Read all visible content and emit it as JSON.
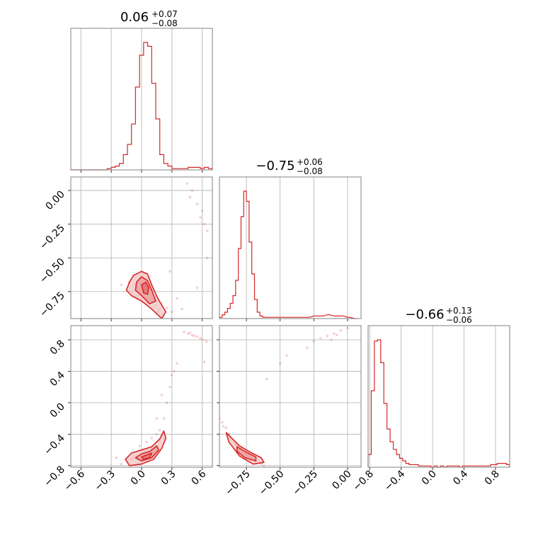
{
  "chart_data": {
    "type": "corner",
    "color": "#d62728",
    "parameters": [
      {
        "median": "0.06",
        "plus": "+0.07",
        "minus": "−0.08",
        "range": [
          -0.7,
          0.7
        ]
      },
      {
        "median": "−0.75",
        "plus": "+0.06",
        "minus": "−0.08",
        "range": [
          -0.95,
          0.1
        ]
      },
      {
        "median": "−0.66",
        "plus": "+0.13",
        "minus": "−0.06",
        "range": [
          -0.82,
          0.98
        ]
      }
    ],
    "ticks": {
      "p0": [
        {
          "v": -0.6,
          "label": "−0.6"
        },
        {
          "v": -0.3,
          "label": "−0.3"
        },
        {
          "v": 0.0,
          "label": "0.0"
        },
        {
          "v": 0.3,
          "label": "0.3"
        },
        {
          "v": 0.6,
          "label": "0.6"
        }
      ],
      "p1": [
        {
          "v": -0.75,
          "label": "−0.75"
        },
        {
          "v": -0.5,
          "label": "−0.50"
        },
        {
          "v": -0.25,
          "label": "−0.25"
        },
        {
          "v": 0.0,
          "label": "0.00"
        }
      ],
      "p2": [
        {
          "v": -0.8,
          "label": "−0.8"
        },
        {
          "v": -0.4,
          "label": "−0.4"
        },
        {
          "v": 0.0,
          "label": "0.0"
        },
        {
          "v": 0.4,
          "label": "0.4"
        },
        {
          "v": 0.8,
          "label": "0.8"
        }
      ]
    },
    "histograms": [
      {
        "x": [
          -0.7,
          -0.66,
          -0.62,
          -0.58,
          -0.54,
          -0.5,
          -0.46,
          -0.42,
          -0.38,
          -0.34,
          -0.3,
          -0.26,
          -0.22,
          -0.18,
          -0.14,
          -0.1,
          -0.06,
          -0.02,
          0.02,
          0.06,
          0.1,
          0.14,
          0.18,
          0.22,
          0.26,
          0.3,
          0.34,
          0.38,
          0.42,
          0.46,
          0.5,
          0.54,
          0.58,
          0.62,
          0.66
        ],
        "counts": [
          0,
          0,
          0,
          0,
          0,
          0,
          0,
          0,
          0,
          0.01,
          0.02,
          0.03,
          0.05,
          0.12,
          0.2,
          0.36,
          0.65,
          0.9,
          1.0,
          0.97,
          0.68,
          0.4,
          0.12,
          0.05,
          0.03,
          0.01,
          0.01,
          0.01,
          0.01,
          0.02,
          0.02,
          0.02,
          0.01,
          0.02,
          0.01
        ]
      },
      {
        "x": [
          -0.95,
          -0.93,
          -0.91,
          -0.89,
          -0.87,
          -0.85,
          -0.83,
          -0.81,
          -0.79,
          -0.77,
          -0.75,
          -0.73,
          -0.71,
          -0.69,
          -0.67,
          -0.65,
          -0.63,
          -0.61,
          -0.59,
          -0.55,
          -0.5,
          -0.45,
          -0.4,
          -0.35,
          -0.3,
          -0.25,
          -0.2,
          -0.15,
          -0.1,
          -0.05,
          0.0,
          0.05
        ],
        "counts": [
          0.01,
          0.03,
          0.05,
          0.08,
          0.12,
          0.18,
          0.3,
          0.55,
          0.8,
          1.0,
          0.92,
          0.6,
          0.35,
          0.15,
          0.05,
          0.02,
          0.01,
          0.01,
          0.01,
          0.01,
          0.01,
          0.01,
          0.01,
          0.01,
          0.01,
          0.02,
          0.02,
          0.03,
          0.02,
          0.02,
          0.01,
          0.0
        ]
      },
      {
        "x": [
          -0.82,
          -0.78,
          -0.74,
          -0.7,
          -0.66,
          -0.62,
          -0.58,
          -0.54,
          -0.5,
          -0.46,
          -0.42,
          -0.38,
          -0.34,
          -0.3,
          -0.26,
          -0.22,
          -0.18,
          -0.14,
          -0.1,
          -0.06,
          -0.02,
          0.02,
          0.06,
          0.1,
          0.14,
          0.18,
          0.22,
          0.26,
          0.3,
          0.34,
          0.38,
          0.42,
          0.46,
          0.5,
          0.54,
          0.58,
          0.62,
          0.66,
          0.7,
          0.74,
          0.78,
          0.82,
          0.86,
          0.9,
          0.94
        ],
        "counts": [
          0.1,
          0.6,
          0.99,
          1.0,
          0.82,
          0.5,
          0.3,
          0.2,
          0.14,
          0.1,
          0.07,
          0.05,
          0.03,
          0.02,
          0.02,
          0.02,
          0.01,
          0.01,
          0.01,
          0.01,
          0.0,
          0.01,
          0.0,
          0.01,
          0.0,
          0.01,
          0.01,
          0.01,
          0.01,
          0.0,
          0.01,
          0.01,
          0.01,
          0.01,
          0.01,
          0.01,
          0.01,
          0.01,
          0.01,
          0.02,
          0.02,
          0.03,
          0.03,
          0.03,
          0.02
        ]
      }
    ],
    "samples": {
      "p0p1_core": [
        [
          -0.08,
          -0.7
        ],
        [
          -0.05,
          -0.72
        ],
        [
          0.0,
          -0.68
        ],
        [
          0.03,
          -0.75
        ],
        [
          0.06,
          -0.73
        ],
        [
          0.08,
          -0.78
        ],
        [
          0.1,
          -0.8
        ],
        [
          0.12,
          -0.82
        ],
        [
          -0.02,
          -0.66
        ],
        [
          0.04,
          -0.7
        ],
        [
          0.14,
          -0.85
        ],
        [
          0.18,
          -0.88
        ],
        [
          -0.1,
          -0.75
        ],
        [
          0.02,
          -0.62
        ],
        [
          0.06,
          -0.65
        ],
        [
          0.09,
          -0.7
        ],
        [
          -0.04,
          -0.78
        ],
        [
          0.16,
          -0.9
        ],
        [
          0.2,
          -0.92
        ],
        [
          0.0,
          -0.8
        ],
        [
          -0.06,
          -0.64
        ],
        [
          0.11,
          -0.74
        ],
        [
          0.05,
          -0.84
        ],
        [
          -0.12,
          -0.68
        ]
      ],
      "p0p1_tail": [
        [
          0.25,
          -0.87
        ],
        [
          0.3,
          -0.9
        ],
        [
          0.35,
          -0.8
        ],
        [
          0.45,
          0.05
        ],
        [
          0.5,
          0.0
        ],
        [
          0.55,
          -0.1
        ],
        [
          0.58,
          -0.2
        ],
        [
          0.6,
          -0.15
        ],
        [
          0.62,
          -0.25
        ],
        [
          0.65,
          -0.3
        ],
        [
          0.48,
          -0.05
        ],
        [
          0.4,
          -0.88
        ],
        [
          0.55,
          -0.72
        ],
        [
          0.65,
          -0.5
        ],
        [
          -0.2,
          -0.7
        ],
        [
          0.28,
          -0.6
        ]
      ],
      "p0p2_core": [
        [
          -0.1,
          -0.72
        ],
        [
          -0.05,
          -0.7
        ],
        [
          0.0,
          -0.66
        ],
        [
          0.03,
          -0.62
        ],
        [
          0.06,
          -0.6
        ],
        [
          0.1,
          -0.58
        ],
        [
          0.14,
          -0.55
        ],
        [
          0.18,
          -0.48
        ],
        [
          0.2,
          -0.42
        ],
        [
          0.22,
          -0.38
        ],
        [
          -0.08,
          -0.68
        ],
        [
          0.02,
          -0.7
        ],
        [
          0.08,
          -0.66
        ],
        [
          0.12,
          -0.64
        ],
        [
          0.16,
          -0.6
        ],
        [
          -0.14,
          -0.74
        ],
        [
          0.05,
          -0.5
        ],
        [
          0.1,
          -0.45
        ],
        [
          0.15,
          -0.4
        ],
        [
          -0.02,
          -0.55
        ],
        [
          0.18,
          -0.35
        ],
        [
          0.22,
          -0.2
        ],
        [
          0.25,
          0.0
        ],
        [
          0.2,
          0.1
        ],
        [
          0.15,
          -0.2
        ],
        [
          0.28,
          0.2
        ],
        [
          0.3,
          0.35
        ]
      ],
      "p0p2_tail": [
        [
          0.42,
          0.9
        ],
        [
          0.46,
          0.88
        ],
        [
          0.5,
          0.86
        ],
        [
          0.55,
          0.84
        ],
        [
          0.6,
          0.8
        ],
        [
          0.64,
          0.78
        ],
        [
          0.48,
          0.89
        ],
        [
          0.52,
          0.85
        ],
        [
          0.58,
          0.82
        ],
        [
          0.35,
          0.5
        ],
        [
          0.32,
          0.4
        ],
        [
          -0.2,
          -0.78
        ],
        [
          -0.25,
          -0.7
        ],
        [
          0.62,
          0.52
        ]
      ],
      "p1p2_core": [
        [
          -0.93,
          -0.25
        ],
        [
          -0.9,
          -0.32
        ],
        [
          -0.88,
          -0.4
        ],
        [
          -0.86,
          -0.46
        ],
        [
          -0.84,
          -0.52
        ],
        [
          -0.82,
          -0.56
        ],
        [
          -0.8,
          -0.6
        ],
        [
          -0.78,
          -0.63
        ],
        [
          -0.76,
          -0.66
        ],
        [
          -0.74,
          -0.68
        ],
        [
          -0.72,
          -0.7
        ],
        [
          -0.7,
          -0.72
        ],
        [
          -0.68,
          -0.74
        ],
        [
          -0.66,
          -0.76
        ],
        [
          -0.64,
          -0.78
        ],
        [
          -0.62,
          -0.8
        ],
        [
          -0.95,
          -0.2
        ],
        [
          -0.92,
          -0.3
        ],
        [
          -0.87,
          -0.44
        ],
        [
          -0.83,
          -0.54
        ],
        [
          -0.79,
          -0.62
        ],
        [
          -0.75,
          -0.67
        ],
        [
          -0.71,
          -0.71
        ]
      ],
      "p1p2_tail": [
        [
          -0.2,
          0.82
        ],
        [
          -0.15,
          0.85
        ],
        [
          -0.1,
          0.88
        ],
        [
          -0.05,
          0.92
        ],
        [
          0.0,
          0.95
        ],
        [
          -0.25,
          0.78
        ],
        [
          -0.3,
          0.7
        ],
        [
          -0.6,
          0.3
        ],
        [
          -0.5,
          0.5
        ],
        [
          -0.45,
          0.6
        ],
        [
          -0.12,
          0.8
        ],
        [
          -0.08,
          0.86
        ]
      ]
    },
    "contours": {
      "p0p1": [
        [
          [
            -0.12,
            -0.68
          ],
          [
            -0.08,
            -0.63
          ],
          [
            0.0,
            -0.6
          ],
          [
            0.06,
            -0.62
          ],
          [
            0.1,
            -0.7
          ],
          [
            0.16,
            -0.8
          ],
          [
            0.24,
            -0.9
          ],
          [
            0.2,
            -0.95
          ],
          [
            0.1,
            -0.88
          ],
          [
            0.0,
            -0.82
          ],
          [
            -0.1,
            -0.78
          ],
          [
            -0.15,
            -0.74
          ]
        ],
        [
          [
            -0.05,
            -0.68
          ],
          [
            0.0,
            -0.64
          ],
          [
            0.06,
            -0.67
          ],
          [
            0.1,
            -0.74
          ],
          [
            0.14,
            -0.82
          ],
          [
            0.08,
            -0.84
          ],
          [
            0.0,
            -0.78
          ],
          [
            -0.06,
            -0.74
          ]
        ],
        [
          [
            0.0,
            -0.7
          ],
          [
            0.04,
            -0.68
          ],
          [
            0.07,
            -0.72
          ],
          [
            0.06,
            -0.77
          ],
          [
            0.02,
            -0.76
          ]
        ]
      ],
      "p0p2": [
        [
          [
            -0.16,
            -0.72
          ],
          [
            -0.1,
            -0.64
          ],
          [
            0.0,
            -0.6
          ],
          [
            0.1,
            -0.56
          ],
          [
            0.18,
            -0.46
          ],
          [
            0.22,
            -0.36
          ],
          [
            0.24,
            -0.45
          ],
          [
            0.2,
            -0.58
          ],
          [
            0.12,
            -0.72
          ],
          [
            0.0,
            -0.78
          ],
          [
            -0.12,
            -0.8
          ]
        ],
        [
          [
            -0.06,
            -0.7
          ],
          [
            0.0,
            -0.65
          ],
          [
            0.08,
            -0.62
          ],
          [
            0.15,
            -0.55
          ],
          [
            0.17,
            -0.6
          ],
          [
            0.1,
            -0.7
          ],
          [
            0.0,
            -0.74
          ]
        ],
        [
          [
            0.0,
            -0.69
          ],
          [
            0.06,
            -0.66
          ],
          [
            0.1,
            -0.64
          ],
          [
            0.08,
            -0.7
          ],
          [
            0.02,
            -0.72
          ]
        ]
      ],
      "p1p2": [
        [
          [
            -0.9,
            -0.38
          ],
          [
            -0.8,
            -0.55
          ],
          [
            -0.72,
            -0.63
          ],
          [
            -0.64,
            -0.7
          ],
          [
            -0.62,
            -0.76
          ],
          [
            -0.7,
            -0.78
          ],
          [
            -0.8,
            -0.68
          ],
          [
            -0.88,
            -0.5
          ]
        ],
        [
          [
            -0.82,
            -0.56
          ],
          [
            -0.75,
            -0.63
          ],
          [
            -0.68,
            -0.69
          ],
          [
            -0.68,
            -0.74
          ],
          [
            -0.76,
            -0.7
          ],
          [
            -0.82,
            -0.62
          ]
        ]
      ]
    }
  }
}
